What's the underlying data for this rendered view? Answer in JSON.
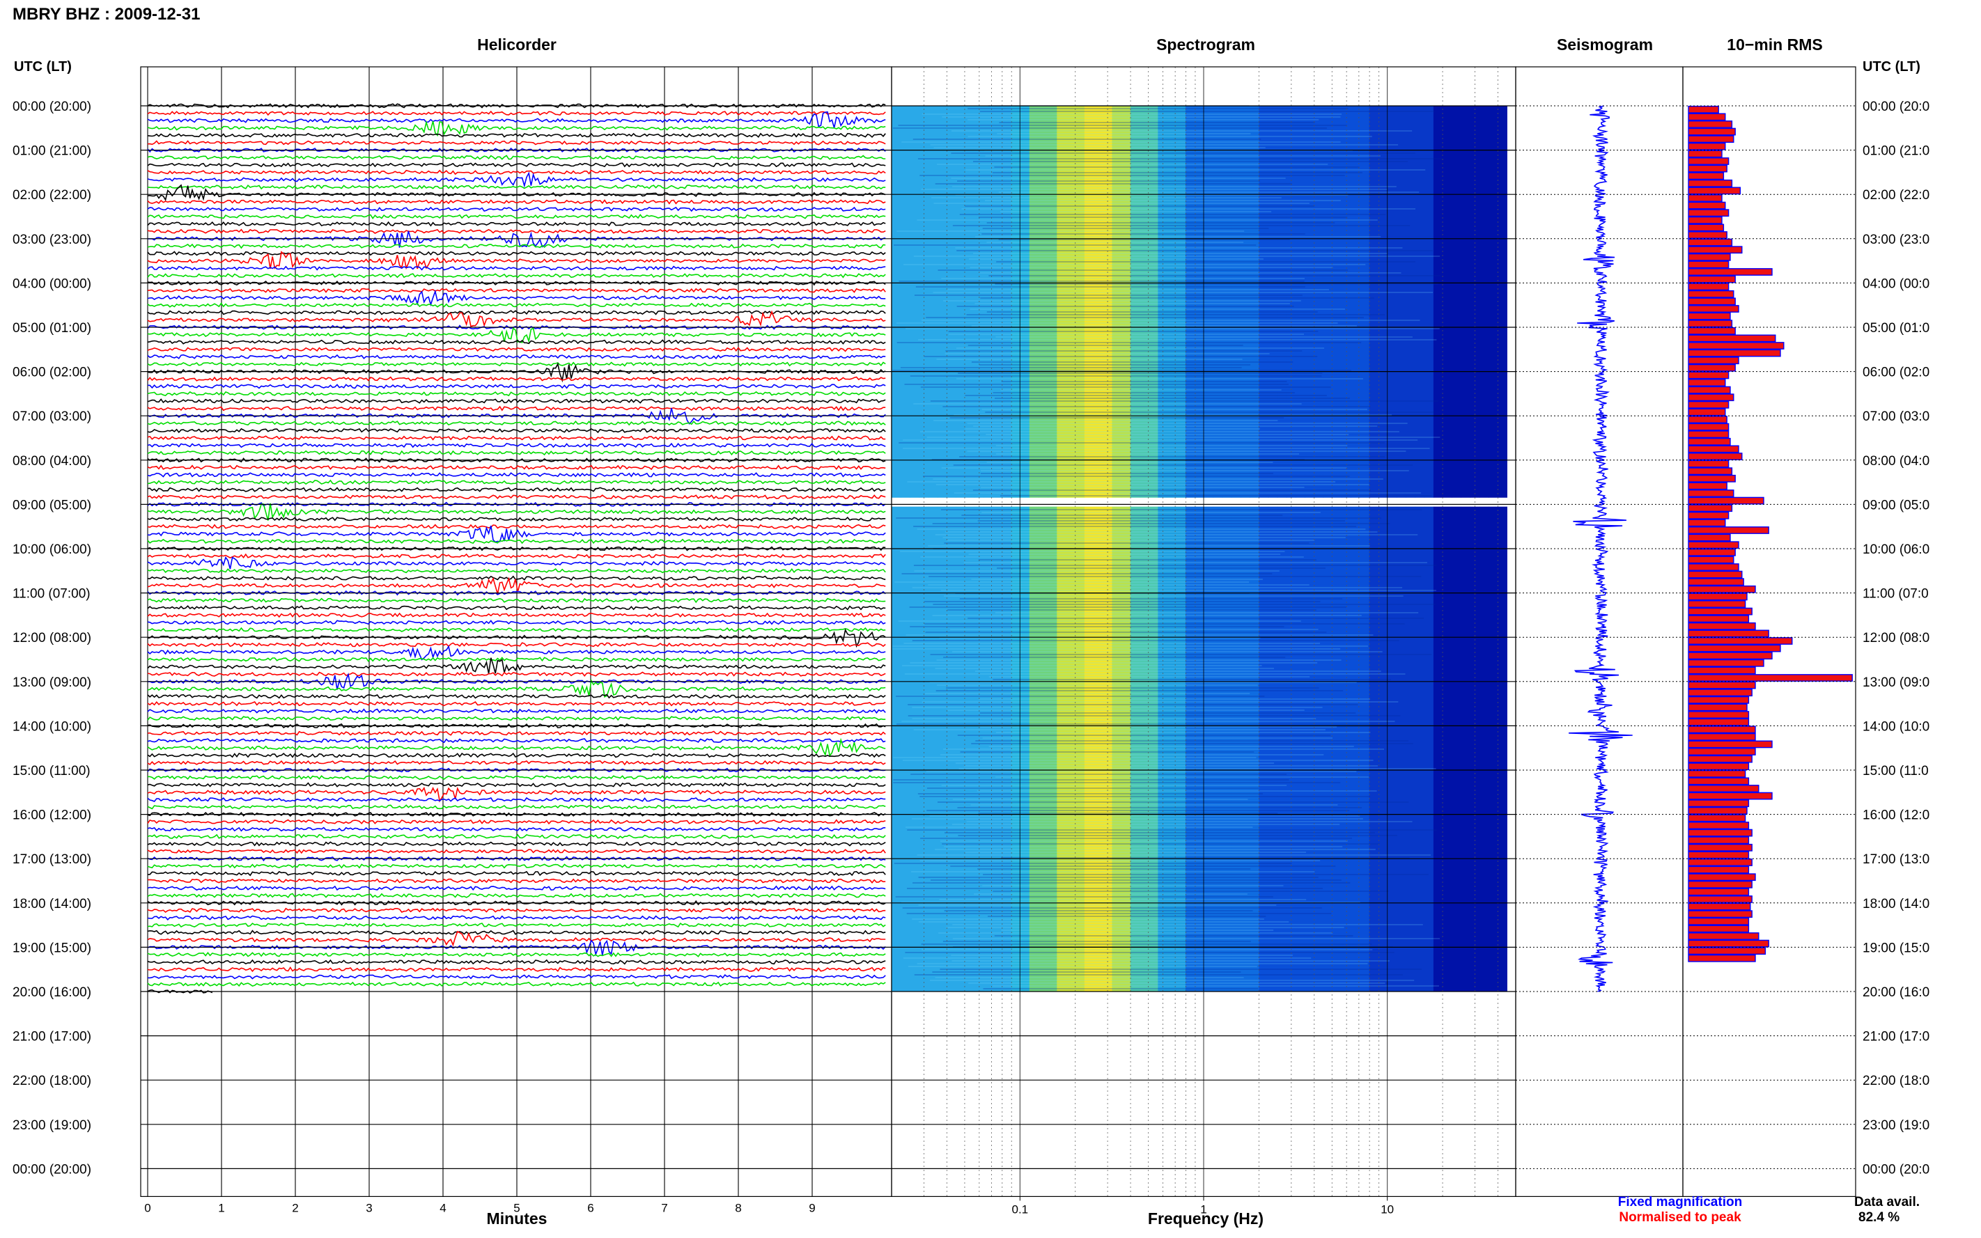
{
  "page_title": "MBRY BHZ : 2009-12-31",
  "colors": {
    "trace_cycle": [
      "#000000",
      "#ff0000",
      "#0000ff",
      "#00dd00"
    ],
    "rms_fill": "#ee1111",
    "rms_edge": "#0000ff",
    "seismogram": "#0000ff",
    "note_fixed": "#0000ff",
    "note_normalised": "#ff0000"
  },
  "chart_data": [
    {
      "type": "line",
      "panel": "helicorder",
      "title": "Helicorder",
      "xlabel": "Minutes",
      "x_ticks": [
        "0",
        "1",
        "2",
        "3",
        "4",
        "5",
        "6",
        "7",
        "8",
        "9"
      ],
      "xlim": [
        0,
        10
      ],
      "rows_per_hour": 6,
      "row_minutes": 10,
      "data_rows": 121,
      "events": [
        {
          "row": 3,
          "minute": 4.0,
          "color": "red"
        },
        {
          "row": 2,
          "minute": 9.2,
          "color": "green"
        },
        {
          "row": 10,
          "minute": 5.0,
          "color": "green"
        },
        {
          "row": 12,
          "minute": 0.5,
          "color": "black"
        },
        {
          "row": 18,
          "minute": 3.4,
          "color": "blue"
        },
        {
          "row": 18,
          "minute": 5.2,
          "color": "blue"
        },
        {
          "row": 21,
          "minute": 1.8,
          "color": "red"
        },
        {
          "row": 21,
          "minute": 3.6,
          "color": "red"
        },
        {
          "row": 26,
          "minute": 3.8,
          "color": "green"
        },
        {
          "row": 29,
          "minute": 4.3,
          "color": "blue"
        },
        {
          "row": 29,
          "minute": 8.4,
          "color": "green"
        },
        {
          "row": 31,
          "minute": 5.0,
          "color": "black"
        },
        {
          "row": 36,
          "minute": 5.6,
          "color": "green"
        },
        {
          "row": 42,
          "minute": 7.2,
          "color": "blue"
        },
        {
          "row": 55,
          "minute": 1.6,
          "color": "black"
        },
        {
          "row": 58,
          "minute": 4.7,
          "color": "black"
        },
        {
          "row": 62,
          "minute": 1.1,
          "color": "red"
        },
        {
          "row": 65,
          "minute": 4.8,
          "color": "black"
        },
        {
          "row": 72,
          "minute": 9.6,
          "color": "black"
        },
        {
          "row": 74,
          "minute": 3.8,
          "color": "green"
        },
        {
          "row": 76,
          "minute": 4.6,
          "color": "red"
        },
        {
          "row": 78,
          "minute": 2.7,
          "color": "black"
        },
        {
          "row": 79,
          "minute": 6.1,
          "color": "red"
        },
        {
          "row": 87,
          "minute": 9.3,
          "color": "green"
        },
        {
          "row": 93,
          "minute": 4.0,
          "color": "red"
        },
        {
          "row": 113,
          "minute": 4.3,
          "color": "green"
        },
        {
          "row": 114,
          "minute": 6.2,
          "color": "black"
        }
      ]
    },
    {
      "type": "heatmap",
      "panel": "spectrogram",
      "title": "Spectrogram",
      "xlabel": "Frequency (Hz)",
      "x_scale": "log",
      "xlim": [
        0.02,
        50
      ],
      "x_ticks": [
        {
          "value": 0.1,
          "label": "0.1"
        },
        {
          "value": 1,
          "label": "1"
        },
        {
          "value": 10,
          "label": "10"
        }
      ],
      "data_gap_hours": [
        8.85,
        9.05
      ],
      "data_end_hour": 20.0
    },
    {
      "type": "line",
      "panel": "seismogram",
      "title": "Seismogram",
      "bursts": [
        {
          "hour": 0.2,
          "amp": 0.12
        },
        {
          "hour": 3.5,
          "amp": 0.35
        },
        {
          "hour": 4.9,
          "amp": 0.4
        },
        {
          "hour": 9.4,
          "amp": 0.6
        },
        {
          "hour": 12.8,
          "amp": 0.45
        },
        {
          "hour": 13.6,
          "amp": 0.3
        },
        {
          "hour": 14.25,
          "amp": 1.0
        },
        {
          "hour": 16.0,
          "amp": 0.25
        },
        {
          "hour": 19.3,
          "amp": 0.3
        }
      ]
    },
    {
      "type": "bar",
      "panel": "rms",
      "title": "10−min RMS",
      "orientation": "horizontal",
      "values": [
        0.18,
        0.22,
        0.26,
        0.28,
        0.27,
        0.22,
        0.2,
        0.24,
        0.23,
        0.21,
        0.26,
        0.31,
        0.2,
        0.22,
        0.24,
        0.2,
        0.21,
        0.23,
        0.26,
        0.32,
        0.25,
        0.24,
        0.5,
        0.28,
        0.24,
        0.27,
        0.28,
        0.3,
        0.25,
        0.26,
        0.28,
        0.52,
        0.57,
        0.55,
        0.3,
        0.28,
        0.24,
        0.22,
        0.25,
        0.27,
        0.24,
        0.22,
        0.23,
        0.24,
        0.24,
        0.25,
        0.3,
        0.32,
        0.24,
        0.26,
        0.28,
        0.23,
        0.27,
        0.45,
        0.26,
        0.24,
        0.22,
        0.48,
        0.25,
        0.3,
        0.28,
        0.27,
        0.3,
        0.32,
        0.33,
        0.4,
        0.35,
        0.34,
        0.38,
        0.36,
        0.4,
        0.48,
        0.62,
        0.55,
        0.5,
        0.45,
        0.4,
        0.98,
        0.4,
        0.38,
        0.36,
        0.35,
        0.36,
        0.36,
        0.4,
        0.4,
        0.5,
        0.4,
        0.38,
        0.36,
        0.34,
        0.36,
        0.42,
        0.5,
        0.36,
        0.35,
        0.34,
        0.36,
        0.38,
        0.36,
        0.38,
        0.36,
        0.38,
        0.36,
        0.4,
        0.38,
        0.36,
        0.38,
        0.37,
        0.38,
        0.36,
        0.36,
        0.42,
        0.48,
        0.46,
        0.4
      ],
      "xlim": [
        0,
        1
      ]
    }
  ],
  "left_axis": {
    "header": "UTC (LT)",
    "ticks": [
      "00:00 (20:00)",
      "01:00 (21:00)",
      "02:00 (22:00)",
      "03:00 (23:00)",
      "04:00 (00:00)",
      "05:00 (01:00)",
      "06:00 (02:00)",
      "07:00 (03:00)",
      "08:00 (04:00)",
      "09:00 (05:00)",
      "10:00 (06:00)",
      "11:00 (07:00)",
      "12:00 (08:00)",
      "13:00 (09:00)",
      "14:00 (10:00)",
      "15:00 (11:00)",
      "16:00 (12:00)",
      "17:00 (13:00)",
      "18:00 (14:00)",
      "19:00 (15:00)",
      "20:00 (16:00)",
      "21:00 (17:00)",
      "22:00 (18:00)",
      "23:00 (19:00)",
      "00:00 (20:00)"
    ]
  },
  "right_axis": {
    "header": "UTC (LT)",
    "ticks": [
      "00:00 (20:0",
      "01:00 (21:0",
      "02:00 (22:0",
      "03:00 (23:0",
      "04:00 (00:0",
      "05:00 (01:0",
      "06:00 (02:0",
      "07:00 (03:0",
      "08:00 (04:0",
      "09:00 (05:0",
      "10:00 (06:0",
      "11:00 (07:0",
      "12:00 (08:0",
      "13:00 (09:0",
      "14:00 (10:0",
      "15:00 (11:0",
      "16:00 (12:0",
      "17:00 (13:0",
      "18:00 (14:0",
      "19:00 (15:0",
      "20:00 (16:0",
      "21:00 (17:0",
      "22:00 (18:0",
      "23:00 (19:0",
      "00:00 (20:0"
    ]
  },
  "footer": {
    "fixed_magnification": "Fixed magnification",
    "normalised_to_peak": "Normalised to peak",
    "data_avail_label": "Data avail.",
    "data_avail_value": "82.4 %"
  }
}
